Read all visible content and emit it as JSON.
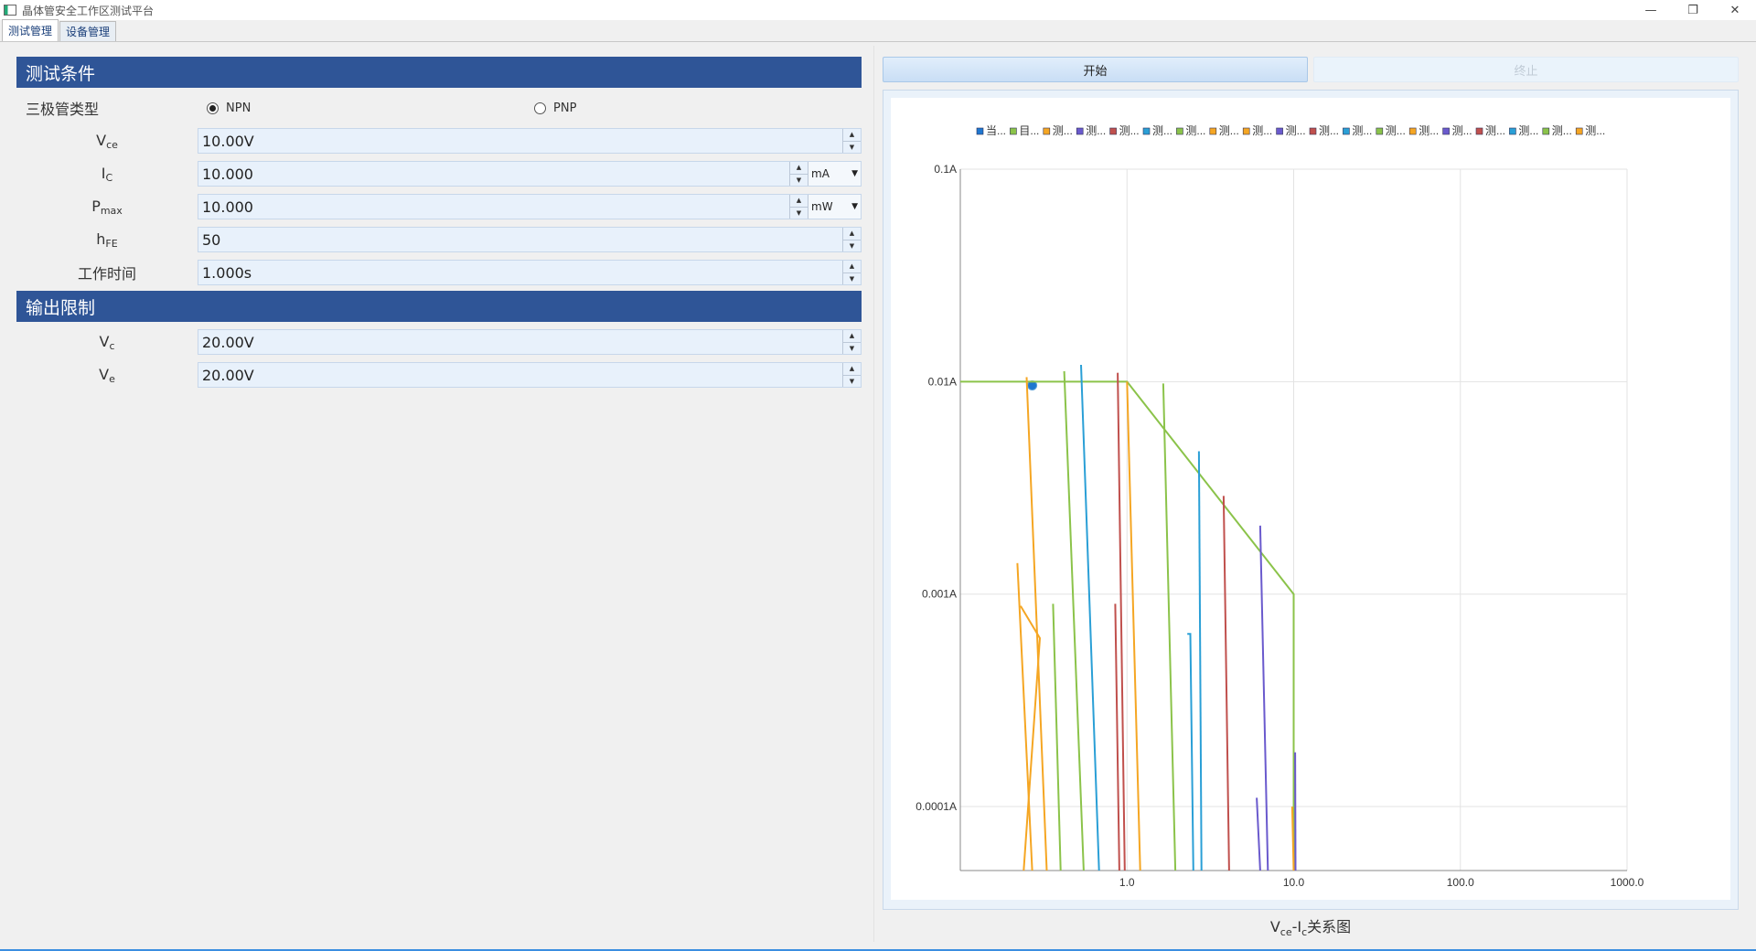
{
  "window": {
    "title": "晶体管安全工作区测试平台"
  },
  "tabs": [
    {
      "label": "测试管理"
    },
    {
      "label": "设备管理"
    }
  ],
  "test_conditions": {
    "header": "测试条件",
    "transistor_type_label": "三极管类型",
    "npn_label": "NPN",
    "pnp_label": "PNP",
    "selected": "NPN",
    "vce": {
      "label_main": "V",
      "label_sub": "ce",
      "value": "10.00V"
    },
    "ic": {
      "label_main": "I",
      "label_sub": "C",
      "value": "10.000",
      "unit": "mA"
    },
    "pmax": {
      "label_main": "P",
      "label_sub": "max",
      "value": "10.000",
      "unit": "mW"
    },
    "hfe": {
      "label_main": "h",
      "label_sub": "FE",
      "value": "50"
    },
    "work_time": {
      "label": "工作时间",
      "value": "1.000s"
    }
  },
  "output_limits": {
    "header": "输出限制",
    "vc": {
      "label_main": "V",
      "label_sub": "c",
      "value": "20.00V"
    },
    "ve": {
      "label_main": "V",
      "label_sub": "e",
      "value": "20.00V"
    }
  },
  "controls": {
    "start_label": "开始",
    "stop_label": "终止"
  },
  "chart_caption": {
    "main1": "V",
    "sub1": "ce",
    "main2": "-I",
    "sub2": "c",
    "rest": "关系图"
  },
  "chart_data": {
    "type": "line",
    "x_scale": "log",
    "y_scale": "log",
    "xlim": [
      0.1,
      1000
    ],
    "ylim": [
      5e-05,
      0.1
    ],
    "x_ticks": [
      "1.0",
      "10.0",
      "100.0",
      "1000.0"
    ],
    "y_ticks": [
      "0.1A",
      "0.01A",
      "0.001A",
      "0.0001A"
    ],
    "legend_position": "top",
    "series": [
      {
        "name": "当...",
        "color": "#1f77d0",
        "points": [
          [
            0.27,
            0.0096
          ]
        ]
      },
      {
        "name": "目...",
        "color": "#8bc34a",
        "points": [
          [
            0.1,
            0.01
          ],
          [
            1.0,
            0.01
          ],
          [
            10,
            0.001
          ],
          [
            10,
            5e-05
          ]
        ]
      },
      {
        "name": "测...",
        "color": "#f5a623",
        "points": [
          [
            0.25,
            0.0105
          ],
          [
            0.33,
            5e-05
          ]
        ]
      },
      {
        "name": "测...",
        "color": "#6a5acd",
        "points": [
          [
            6.3,
            0.0021
          ],
          [
            7.0,
            5e-05
          ]
        ]
      },
      {
        "name": "测...",
        "color": "#c0504d",
        "points": [
          [
            0.88,
            0.011
          ],
          [
            0.97,
            5e-05
          ]
        ]
      },
      {
        "name": "测...",
        "color": "#2a9fd6",
        "points": [
          [
            0.53,
            0.012
          ],
          [
            0.68,
            5e-05
          ]
        ]
      },
      {
        "name": "测...",
        "color": "#8bc34a",
        "points": [
          [
            0.42,
            0.0112
          ],
          [
            0.55,
            5e-05
          ]
        ]
      },
      {
        "name": "测...",
        "color": "#f5a623",
        "points": [
          [
            1.0,
            0.01
          ],
          [
            1.2,
            5e-05
          ]
        ]
      },
      {
        "name": "测...",
        "color": "#f5a623",
        "points": [
          [
            0.22,
            0.0014
          ],
          [
            0.27,
            5e-05
          ]
        ]
      },
      {
        "name": "测...",
        "color": "#6a5acd",
        "points": [
          [
            6.0,
            0.00011
          ],
          [
            6.3,
            5e-05
          ]
        ]
      },
      {
        "name": "测...",
        "color": "#c0504d",
        "points": [
          [
            3.8,
            0.0029
          ],
          [
            4.1,
            5e-05
          ]
        ]
      },
      {
        "name": "测...",
        "color": "#2a9fd6",
        "points": [
          [
            2.7,
            0.0047
          ],
          [
            2.8,
            5e-05
          ]
        ]
      },
      {
        "name": "测...",
        "color": "#8bc34a",
        "points": [
          [
            1.65,
            0.0098
          ],
          [
            1.95,
            5e-05
          ]
        ]
      },
      {
        "name": "测...",
        "color": "#f5a623",
        "points": [
          [
            0.23,
            0.00088
          ],
          [
            0.3,
            0.00062
          ],
          [
            0.24,
            5e-05
          ]
        ]
      },
      {
        "name": "测...",
        "color": "#6a5acd",
        "points": [
          [
            10.2,
            0.00018
          ],
          [
            10.25,
            5e-05
          ]
        ]
      },
      {
        "name": "测...",
        "color": "#c0504d",
        "points": [
          [
            0.85,
            0.0009
          ],
          [
            0.9,
            5e-05
          ]
        ]
      },
      {
        "name": "测...",
        "color": "#2a9fd6",
        "points": [
          [
            2.3,
            0.00065
          ],
          [
            2.4,
            0.00065
          ],
          [
            2.5,
            5e-05
          ]
        ]
      },
      {
        "name": "测...",
        "color": "#8bc34a",
        "points": [
          [
            0.36,
            0.0009
          ],
          [
            0.4,
            5e-05
          ]
        ]
      },
      {
        "name": "测...",
        "color": "#f5a623",
        "points": [
          [
            9.8,
            0.0001
          ],
          [
            10,
            5e-05
          ]
        ]
      }
    ]
  }
}
